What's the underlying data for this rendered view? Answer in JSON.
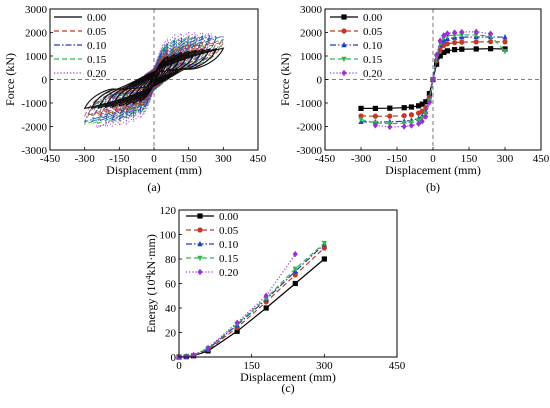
{
  "chart_data": [
    {
      "type": "line",
      "panel_label": "(a)",
      "xlabel": "Displacement (mm)",
      "ylabel": "Force (kN)",
      "xlim": [
        -450,
        450
      ],
      "ylim": [
        -3000,
        3000
      ],
      "xticks": [
        -450,
        -300,
        -150,
        0,
        150,
        300,
        450
      ],
      "yticks": [
        -3000,
        -2000,
        -1000,
        0,
        1000,
        2000,
        3000
      ],
      "legend_position": "top-left",
      "reference_lines": {
        "x0": true,
        "y0": true,
        "style": "dashed"
      },
      "cycle_amplitudes": [
        15,
        30,
        45,
        60,
        90,
        120,
        150,
        180,
        210,
        240,
        270,
        300
      ],
      "series": [
        {
          "name": "0.00",
          "color": "#000000",
          "dash": "solid",
          "skeleton": [
            [
              -300,
              -1230
            ],
            [
              -250,
              -1220
            ],
            [
              -200,
              -1180
            ],
            [
              -150,
              -1130
            ],
            [
              -100,
              -1050
            ],
            [
              -50,
              -900
            ],
            [
              -20,
              -500
            ],
            [
              0,
              0
            ],
            [
              20,
              600
            ],
            [
              50,
              950
            ],
            [
              100,
              1100
            ],
            [
              150,
              1200
            ],
            [
              200,
              1270
            ],
            [
              250,
              1300
            ],
            [
              300,
              1330
            ]
          ]
        },
        {
          "name": "0.05",
          "color": "#c0392b",
          "dash": "dashed",
          "skeleton": [
            [
              -300,
              -1550
            ],
            [
              -250,
              -1520
            ],
            [
              -200,
              -1480
            ],
            [
              -150,
              -1420
            ],
            [
              -100,
              -1330
            ],
            [
              -50,
              -1150
            ],
            [
              -20,
              -650
            ],
            [
              0,
              0
            ],
            [
              20,
              700
            ],
            [
              50,
              1200
            ],
            [
              100,
              1400
            ],
            [
              150,
              1500
            ],
            [
              200,
              1560
            ],
            [
              250,
              1580
            ],
            [
              300,
              1600
            ]
          ]
        },
        {
          "name": "0.10",
          "color": "#1f3fbf",
          "dash": "dashdot",
          "skeleton": [
            [
              -300,
              -1800
            ],
            [
              -250,
              -1780
            ],
            [
              -200,
              -1740
            ],
            [
              -150,
              -1680
            ],
            [
              -100,
              -1580
            ],
            [
              -50,
              -1350
            ],
            [
              -20,
              -750
            ],
            [
              0,
              0
            ],
            [
              20,
              850
            ],
            [
              50,
              1450
            ],
            [
              100,
              1700
            ],
            [
              150,
              1780
            ],
            [
              200,
              1820
            ],
            [
              250,
              1830
            ],
            [
              300,
              1850
            ]
          ]
        },
        {
          "name": "0.15",
          "color": "#2fb84a",
          "dash": "dashed",
          "skeleton": [
            [
              -300,
              -1900
            ],
            [
              -250,
              -1870
            ],
            [
              -200,
              -1820
            ],
            [
              -150,
              -1750
            ],
            [
              -100,
              -1650
            ],
            [
              -50,
              -1400
            ],
            [
              -20,
              -800
            ],
            [
              0,
              0
            ],
            [
              20,
              900
            ],
            [
              50,
              1550
            ],
            [
              100,
              1800
            ],
            [
              150,
              1850
            ],
            [
              200,
              1880
            ],
            [
              250,
              1860
            ],
            [
              300,
              1700
            ]
          ]
        },
        {
          "name": "0.20",
          "color": "#9b30d9",
          "dash": "dotted",
          "skeleton": [
            [
              -250,
              -2050
            ],
            [
              -200,
              -2000
            ],
            [
              -150,
              -1950
            ],
            [
              -100,
              -1850
            ],
            [
              -50,
              -1600
            ],
            [
              -20,
              -900
            ],
            [
              0,
              0
            ],
            [
              20,
              1000
            ],
            [
              50,
              1700
            ],
            [
              100,
              1950
            ],
            [
              150,
              2000
            ],
            [
              200,
              2000
            ],
            [
              250,
              1950
            ]
          ]
        }
      ]
    },
    {
      "type": "line",
      "panel_label": "(b)",
      "xlabel": "Displacement (mm)",
      "ylabel": "Force (kN)",
      "xlim": [
        -450,
        450
      ],
      "ylim": [
        -3000,
        3000
      ],
      "xticks": [
        -450,
        -300,
        -150,
        0,
        150,
        300,
        450
      ],
      "yticks": [
        -3000,
        -2000,
        -1000,
        0,
        1000,
        2000,
        3000
      ],
      "legend_position": "top-left",
      "reference_lines": {
        "x0": true,
        "y0": true,
        "style": "dashed"
      },
      "series": [
        {
          "name": "0.00",
          "color": "#000000",
          "dash": "solid",
          "marker": "square",
          "x": [
            -300,
            -240,
            -180,
            -120,
            -90,
            -60,
            -45,
            -30,
            -15,
            0,
            15,
            30,
            45,
            60,
            90,
            120,
            180,
            240,
            300
          ],
          "y": [
            -1230,
            -1230,
            -1220,
            -1200,
            -1170,
            -1120,
            -1050,
            -950,
            -600,
            0,
            650,
            1000,
            1150,
            1220,
            1270,
            1290,
            1300,
            1310,
            1300
          ]
        },
        {
          "name": "0.05",
          "color": "#c0392b",
          "dash": "dashed",
          "marker": "circle",
          "x": [
            -300,
            -240,
            -180,
            -120,
            -90,
            -60,
            -45,
            -30,
            -15,
            0,
            15,
            30,
            45,
            60,
            90,
            120,
            180,
            240,
            300
          ],
          "y": [
            -1550,
            -1560,
            -1560,
            -1540,
            -1500,
            -1430,
            -1350,
            -1200,
            -750,
            0,
            800,
            1250,
            1450,
            1520,
            1570,
            1590,
            1600,
            1610,
            1600
          ]
        },
        {
          "name": "0.10",
          "color": "#1f3fbf",
          "dash": "dashdot",
          "marker": "triangle-up",
          "x": [
            -300,
            -240,
            -180,
            -120,
            -90,
            -60,
            -45,
            -30,
            -15,
            0,
            15,
            30,
            45,
            60,
            90,
            120,
            180,
            240,
            300
          ],
          "y": [
            -1800,
            -1810,
            -1800,
            -1780,
            -1740,
            -1660,
            -1560,
            -1380,
            -850,
            0,
            900,
            1450,
            1650,
            1730,
            1780,
            1800,
            1810,
            1810,
            1800
          ]
        },
        {
          "name": "0.15",
          "color": "#2fb84a",
          "dash": "dashed",
          "marker": "triangle-down",
          "x": [
            -300,
            -240,
            -180,
            -120,
            -90,
            -60,
            -45,
            -30,
            -15,
            0,
            15,
            30,
            45,
            60,
            90,
            120,
            180,
            240,
            300
          ],
          "y": [
            -1700,
            -1850,
            -1880,
            -1860,
            -1820,
            -1740,
            -1640,
            -1450,
            -900,
            0,
            950,
            1550,
            1780,
            1860,
            1890,
            1900,
            1890,
            1850,
            1200
          ]
        },
        {
          "name": "0.20",
          "color": "#9b30d9",
          "dash": "dotted",
          "marker": "diamond",
          "x": [
            -240,
            -180,
            -120,
            -90,
            -60,
            -45,
            -30,
            -15,
            0,
            15,
            30,
            45,
            60,
            90,
            120,
            180,
            240
          ],
          "y": [
            -1950,
            -2020,
            -2000,
            -1960,
            -1880,
            -1780,
            -1580,
            -980,
            0,
            1050,
            1650,
            1880,
            1960,
            2000,
            2020,
            2030,
            1950
          ]
        }
      ]
    },
    {
      "type": "line",
      "panel_label": "(c)",
      "xlabel": "Displacement (mm)",
      "ylabel_parts": [
        "Energy (10",
        "4",
        "kN·mm)"
      ],
      "xlim": [
        0,
        450
      ],
      "ylim": [
        0,
        120
      ],
      "xticks": [
        0,
        150,
        300,
        450
      ],
      "yticks": [
        0,
        20,
        40,
        60,
        80,
        100,
        120
      ],
      "legend_position": "top-left",
      "series": [
        {
          "name": "0.00",
          "color": "#000000",
          "dash": "solid",
          "marker": "square",
          "x": [
            0,
            15,
            30,
            60,
            120,
            180,
            240,
            300
          ],
          "y": [
            0,
            0.3,
            1,
            5,
            21,
            40,
            60,
            80
          ]
        },
        {
          "name": "0.05",
          "color": "#c0392b",
          "dash": "dashed",
          "marker": "circle",
          "x": [
            0,
            15,
            30,
            60,
            120,
            180,
            240,
            300
          ],
          "y": [
            0,
            0.3,
            1.2,
            6,
            24,
            45,
            67,
            89
          ]
        },
        {
          "name": "0.10",
          "color": "#1f3fbf",
          "dash": "dashdot",
          "marker": "triangle-up",
          "x": [
            0,
            15,
            30,
            60,
            120,
            180,
            240,
            300
          ],
          "y": [
            0,
            0.4,
            1.3,
            6.5,
            26,
            47,
            70,
            92
          ]
        },
        {
          "name": "0.15",
          "color": "#2fb84a",
          "dash": "dashed",
          "marker": "triangle-down",
          "x": [
            0,
            15,
            30,
            60,
            120,
            180,
            240,
            300
          ],
          "y": [
            0,
            0.4,
            1.4,
            7,
            27,
            48,
            72,
            93
          ]
        },
        {
          "name": "0.20",
          "color": "#9b30d9",
          "dash": "dotted",
          "marker": "diamond",
          "x": [
            0,
            15,
            30,
            60,
            120,
            180,
            240
          ],
          "y": [
            0,
            0.5,
            1.6,
            7.5,
            28,
            50,
            84
          ]
        }
      ]
    }
  ]
}
